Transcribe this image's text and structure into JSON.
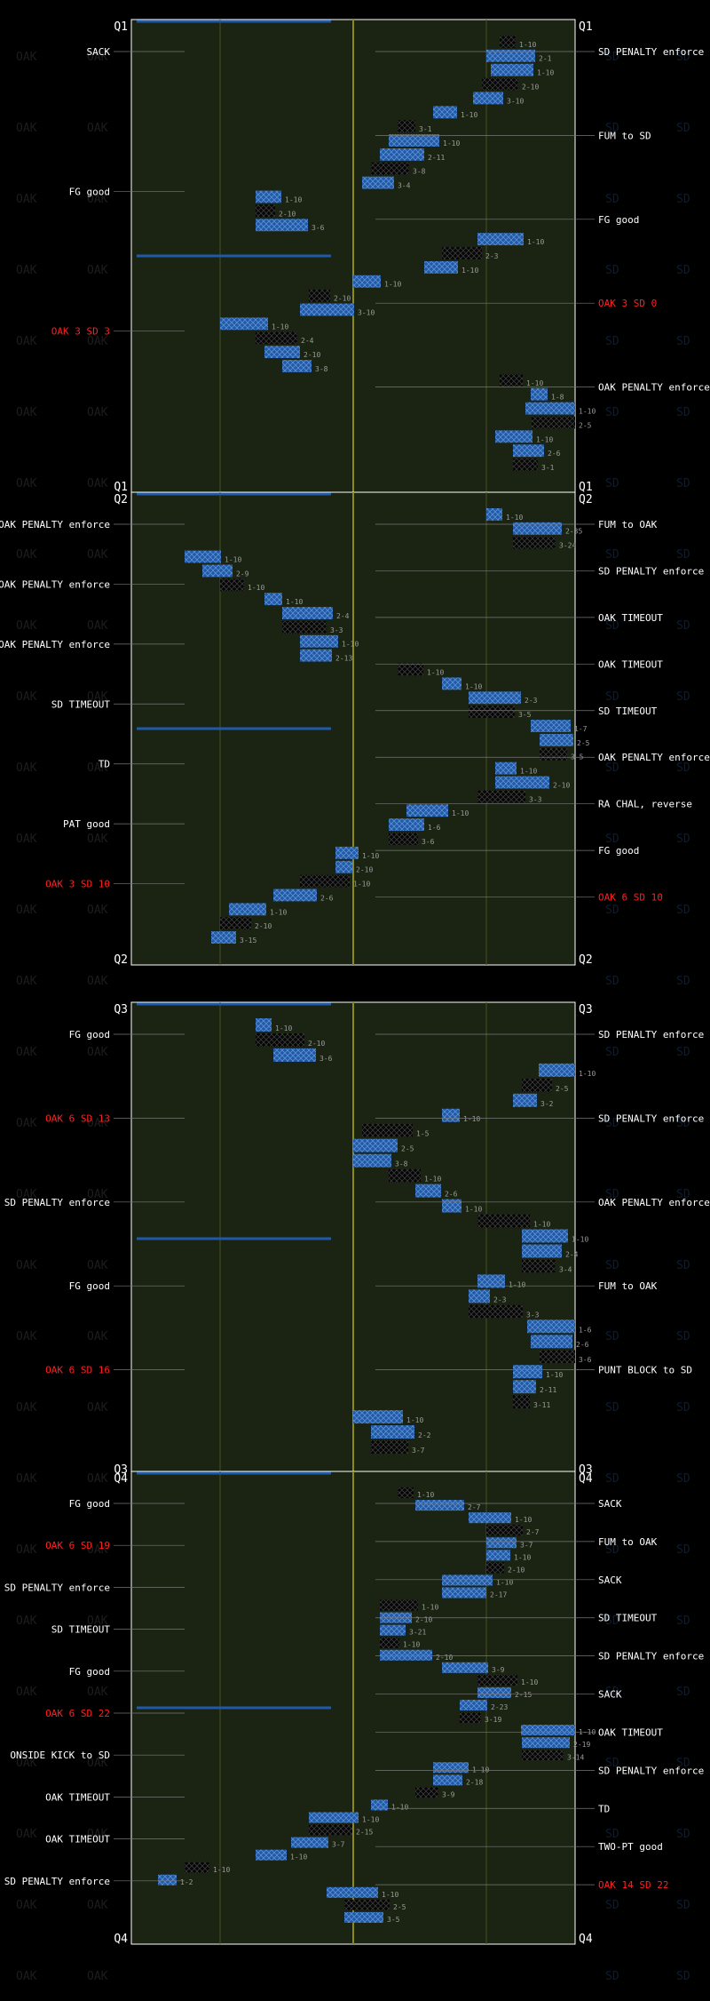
{
  "chart_data": {
    "type": "drive-chart",
    "teams": [
      "OAK",
      "SD"
    ],
    "colors": {
      "OAK": "#111111",
      "SD": "#1f5aa8",
      "field": "#1b2412",
      "accent_line": "#8a8a1a",
      "score": "#ff2020"
    },
    "quarters": [
      {
        "label": "Q1",
        "plays": [
          {
            "yd": 83,
            "tag": "1-10"
          },
          {
            "yd": 80,
            "tag": "2-1"
          },
          {
            "yd": 81,
            "tag": "1-10"
          },
          {
            "yd": 79,
            "tag": "2-10"
          },
          {
            "yd": 77,
            "tag": "3-10"
          },
          {
            "yd": 68,
            "tag": "1-10"
          },
          {
            "yd": 60,
            "tag": "3-1"
          },
          {
            "yd": 58,
            "tag": "1-10"
          },
          {
            "yd": 56,
            "tag": "2-11"
          },
          {
            "yd": 54,
            "tag": "3-8"
          },
          {
            "yd": 52,
            "tag": "3-4"
          },
          {
            "yd": 28,
            "tag": "1-10"
          },
          {
            "yd": 28,
            "tag": "2-10"
          },
          {
            "yd": 28,
            "tag": "3-6"
          },
          {
            "yd": 78,
            "tag": "1-10"
          },
          {
            "yd": 70,
            "tag": "2-3"
          },
          {
            "yd": 66,
            "tag": "1-10"
          },
          {
            "yd": 50,
            "tag": "1-10"
          },
          {
            "yd": 40,
            "tag": "2-10"
          },
          {
            "yd": 38,
            "tag": "3-10"
          },
          {
            "yd": 20,
            "tag": "1-10"
          },
          {
            "yd": 28,
            "tag": "2-4"
          },
          {
            "yd": 30,
            "tag": "2-10"
          },
          {
            "yd": 34,
            "tag": "3-8"
          },
          {
            "yd": 83,
            "tag": "1-10"
          },
          {
            "yd": 90,
            "tag": "1-8"
          },
          {
            "yd": 92,
            "tag": "1-10"
          },
          {
            "yd": 94,
            "tag": "2-5"
          },
          {
            "yd": 82,
            "tag": "1-10"
          },
          {
            "yd": 86,
            "tag": "2-6"
          },
          {
            "yd": 86,
            "tag": "3-1"
          }
        ],
        "left_notes": [
          {
            "text": "SACK",
            "red": false
          },
          {
            "text": "FG good",
            "red": false
          },
          {
            "text": "OAK 3 SD 3",
            "red": true
          }
        ],
        "right_notes": [
          {
            "text": "SD PENALTY enforce",
            "red": false
          },
          {
            "text": "FUM to SD",
            "red": false
          },
          {
            "text": "FG good",
            "red": false
          },
          {
            "text": "OAK 3 SD 0",
            "red": true
          },
          {
            "text": "OAK PENALTY enforce",
            "red": false
          }
        ]
      },
      {
        "label": "Q2",
        "plays": [
          {
            "yd": 80,
            "tag": "1-10"
          },
          {
            "yd": 86,
            "tag": "2-35"
          },
          {
            "yd": 86,
            "tag": "3-24"
          },
          {
            "yd": 12,
            "tag": "1-10"
          },
          {
            "yd": 16,
            "tag": "2-9"
          },
          {
            "yd": 20,
            "tag": "1-10"
          },
          {
            "yd": 30,
            "tag": "1-10"
          },
          {
            "yd": 34,
            "tag": "2-4"
          },
          {
            "yd": 34,
            "tag": "3-3"
          },
          {
            "yd": 38,
            "tag": "1-10"
          },
          {
            "yd": 38,
            "tag": "2-13"
          },
          {
            "yd": 60,
            "tag": "1-10"
          },
          {
            "yd": 70,
            "tag": "1-10"
          },
          {
            "yd": 76,
            "tag": "2-3"
          },
          {
            "yd": 76,
            "tag": "3-5"
          },
          {
            "yd": 90,
            "tag": "1-7"
          },
          {
            "yd": 92,
            "tag": "2-5"
          },
          {
            "yd": 92,
            "tag": "3-5"
          },
          {
            "yd": 82,
            "tag": "1-10"
          },
          {
            "yd": 82,
            "tag": "2-10"
          },
          {
            "yd": 78,
            "tag": "3-3"
          },
          {
            "yd": 62,
            "tag": "1-10"
          },
          {
            "yd": 58,
            "tag": "1-6"
          },
          {
            "yd": 58,
            "tag": "3-6"
          },
          {
            "yd": 46,
            "tag": "1-10"
          },
          {
            "yd": 46,
            "tag": "2-10"
          },
          {
            "yd": 38,
            "tag": "1-10"
          },
          {
            "yd": 32,
            "tag": "2-6"
          },
          {
            "yd": 22,
            "tag": "1-10"
          },
          {
            "yd": 20,
            "tag": "2-10"
          },
          {
            "yd": 18,
            "tag": "3-15"
          }
        ],
        "left_notes": [
          {
            "text": "OAK PENALTY enforce",
            "red": false
          },
          {
            "text": "OAK PENALTY enforce",
            "red": false
          },
          {
            "text": "OAK PENALTY enforce",
            "red": false
          },
          {
            "text": "SD TIMEOUT",
            "red": false
          },
          {
            "text": "TD",
            "red": false
          },
          {
            "text": "PAT good",
            "red": false
          },
          {
            "text": "OAK 3 SD 10",
            "red": true
          }
        ],
        "right_notes": [
          {
            "text": "FUM to OAK",
            "red": false
          },
          {
            "text": "SD PENALTY enforce",
            "red": false
          },
          {
            "text": "OAK TIMEOUT",
            "red": false
          },
          {
            "text": "OAK TIMEOUT",
            "red": false
          },
          {
            "text": "SD TIMEOUT",
            "red": false
          },
          {
            "text": "OAK PENALTY enforce",
            "red": false
          },
          {
            "text": "RA CHAL, reverse",
            "red": false
          },
          {
            "text": "FG good",
            "red": false
          },
          {
            "text": "OAK 6 SD 10",
            "red": true
          }
        ]
      },
      {
        "label": "Q3",
        "plays": [
          {
            "yd": 28,
            "tag": "1-10"
          },
          {
            "yd": 28,
            "tag": "2-10"
          },
          {
            "yd": 32,
            "tag": "3-6"
          },
          {
            "yd": 92,
            "tag": "1-10"
          },
          {
            "yd": 88,
            "tag": "2-5"
          },
          {
            "yd": 86,
            "tag": "3-2"
          },
          {
            "yd": 70,
            "tag": "1-10"
          },
          {
            "yd": 52,
            "tag": "1-5"
          },
          {
            "yd": 50,
            "tag": "2-5"
          },
          {
            "yd": 50,
            "tag": "3-8"
          },
          {
            "yd": 58,
            "tag": "1-10"
          },
          {
            "yd": 64,
            "tag": "2-6"
          },
          {
            "yd": 70,
            "tag": "1-10"
          },
          {
            "yd": 78,
            "tag": "1-10"
          },
          {
            "yd": 88,
            "tag": "1-10"
          },
          {
            "yd": 88,
            "tag": "2-4"
          },
          {
            "yd": 88,
            "tag": "3-4"
          },
          {
            "yd": 78,
            "tag": "1-10"
          },
          {
            "yd": 76,
            "tag": "2-3"
          },
          {
            "yd": 76,
            "tag": "3-3"
          },
          {
            "yd": 90,
            "tag": "1-6"
          },
          {
            "yd": 90,
            "tag": "2-6"
          },
          {
            "yd": 92,
            "tag": "3-6"
          },
          {
            "yd": 86,
            "tag": "1-10"
          },
          {
            "yd": 86,
            "tag": "2-11"
          },
          {
            "yd": 86,
            "tag": "3-11"
          },
          {
            "yd": 50,
            "tag": "1-10"
          },
          {
            "yd": 54,
            "tag": "2-2"
          },
          {
            "yd": 54,
            "tag": "3-7"
          }
        ],
        "left_notes": [
          {
            "text": "FG good",
            "red": false
          },
          {
            "text": "OAK 6 SD 13",
            "red": true
          },
          {
            "text": "SD PENALTY enforce",
            "red": false
          },
          {
            "text": "FG good",
            "red": false
          },
          {
            "text": "OAK 6 SD 16",
            "red": true
          }
        ],
        "right_notes": [
          {
            "text": "SD PENALTY enforce",
            "red": false
          },
          {
            "text": "SD PENALTY enforce",
            "red": false
          },
          {
            "text": "OAK PENALTY enforce",
            "red": false
          },
          {
            "text": "FUM to OAK",
            "red": false
          },
          {
            "text": "PUNT BLOCK to SD",
            "red": false
          }
        ]
      },
      {
        "label": "Q4",
        "plays": [
          {
            "yd": 60,
            "tag": "1-10"
          },
          {
            "yd": 64,
            "tag": "2-7"
          },
          {
            "yd": 76,
            "tag": "1-10"
          },
          {
            "yd": 80,
            "tag": "2-7"
          },
          {
            "yd": 80,
            "tag": "3-7"
          },
          {
            "yd": 80,
            "tag": "1-10"
          },
          {
            "yd": 80,
            "tag": "2-10"
          },
          {
            "yd": 70,
            "tag": "1-10"
          },
          {
            "yd": 70,
            "tag": "2-17"
          },
          {
            "yd": 56,
            "tag": "1-10"
          },
          {
            "yd": 56,
            "tag": "2-10"
          },
          {
            "yd": 56,
            "tag": "3-21"
          },
          {
            "yd": 56,
            "tag": "1-10"
          },
          {
            "yd": 56,
            "tag": "2-10"
          },
          {
            "yd": 70,
            "tag": "3-9"
          },
          {
            "yd": 78,
            "tag": "1-10"
          },
          {
            "yd": 78,
            "tag": "2-15"
          },
          {
            "yd": 74,
            "tag": "2-23"
          },
          {
            "yd": 74,
            "tag": "3-19"
          },
          {
            "yd": 88,
            "tag": "1-10"
          },
          {
            "yd": 88,
            "tag": "2-19"
          },
          {
            "yd": 88,
            "tag": "3-14"
          },
          {
            "yd": 68,
            "tag": "1-10"
          },
          {
            "yd": 68,
            "tag": "2-18"
          },
          {
            "yd": 64,
            "tag": "3-9"
          },
          {
            "yd": 54,
            "tag": "1-10"
          },
          {
            "yd": 40,
            "tag": "1-10"
          },
          {
            "yd": 40,
            "tag": "2-15"
          },
          {
            "yd": 36,
            "tag": "3-7"
          },
          {
            "yd": 28,
            "tag": "1-10"
          },
          {
            "yd": 12,
            "tag": "1-10"
          },
          {
            "yd": 6,
            "tag": "1-2"
          },
          {
            "yd": 44,
            "tag": "1-10"
          },
          {
            "yd": 48,
            "tag": "2-5"
          },
          {
            "yd": 48,
            "tag": "3-5"
          }
        ],
        "left_notes": [
          {
            "text": "FG good",
            "red": false
          },
          {
            "text": "OAK 6 SD 19",
            "red": true
          },
          {
            "text": "SD PENALTY enforce",
            "red": false
          },
          {
            "text": "SD TIMEOUT",
            "red": false
          },
          {
            "text": "FG good",
            "red": false
          },
          {
            "text": "OAK 6 SD 22",
            "red": true
          },
          {
            "text": "ONSIDE KICK to SD",
            "red": false
          },
          {
            "text": "OAK TIMEOUT",
            "red": false
          },
          {
            "text": "OAK TIMEOUT",
            "red": false
          },
          {
            "text": "SD PENALTY enforce",
            "red": false
          }
        ],
        "right_notes": [
          {
            "text": "SACK",
            "red": false
          },
          {
            "text": "FUM to OAK",
            "red": false
          },
          {
            "text": "SACK",
            "red": false
          },
          {
            "text": "SD TIMEOUT",
            "red": false
          },
          {
            "text": "SD PENALTY enforce",
            "red": false
          },
          {
            "text": "SACK",
            "red": false
          },
          {
            "text": "OAK TIMEOUT",
            "red": false
          },
          {
            "text": "SD PENALTY enforce",
            "red": false
          },
          {
            "text": "TD",
            "red": false
          },
          {
            "text": "TWO-PT good",
            "red": false
          },
          {
            "text": "OAK 14 SD 22",
            "red": true
          }
        ]
      }
    ]
  }
}
